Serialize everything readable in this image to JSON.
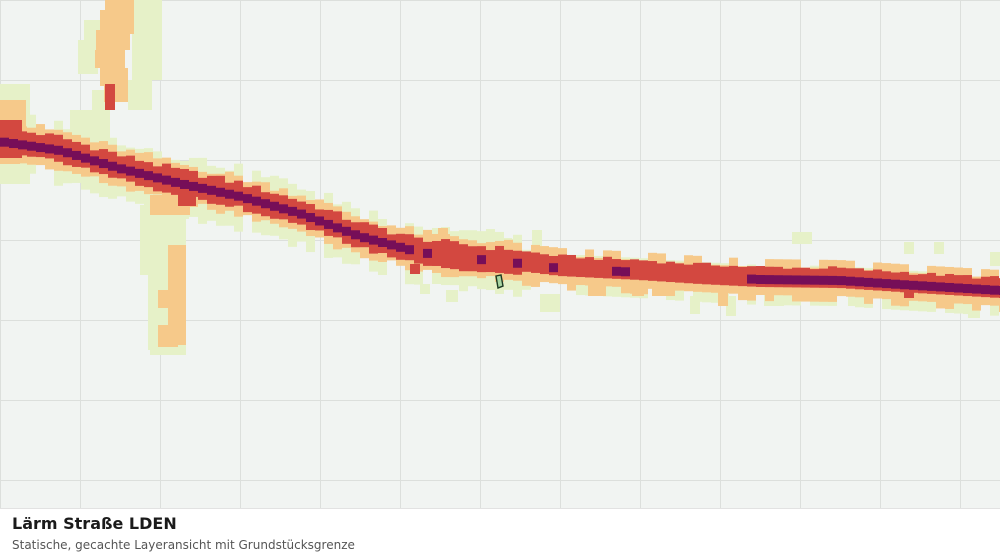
{
  "map": {
    "layer_name": "Lärm Straße LDEN",
    "colors": {
      "background": "#f1f4f2",
      "grid": "#dcdfdc",
      "noise_level_1": "#e6f1c8",
      "noise_level_2": "#f6c98a",
      "noise_level_3": "#d34840",
      "noise_level_4": "#760e58",
      "parcel_fill": "#a9d6a2",
      "parcel_stroke": "#1d3a22"
    }
  },
  "caption": {
    "title": "Lärm Straße LDEN",
    "subtitle": "Statische, gecachte Layeransicht mit Grundstücksgrenze"
  }
}
